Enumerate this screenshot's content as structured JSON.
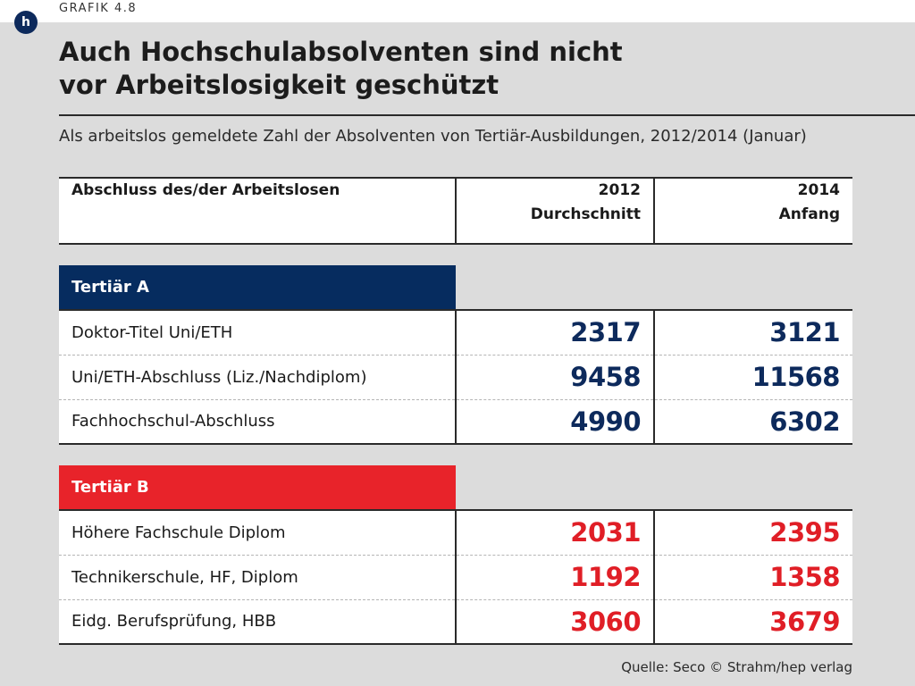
{
  "header": {
    "grafik_label": "GRAFIK 4.8",
    "badge_glyph": "h",
    "title_line1": "Auch Hochschulabsolventen sind nicht",
    "title_line2": "vor Arbeitslosigkeit geschützt",
    "subtitle": "Als arbeitslos gemeldete Zahl der Absolventen von Tertiär-Ausbildungen, 2012/2014 (Januar)"
  },
  "colors": {
    "tertiaer_a": "#062c5f",
    "tertiaer_b": "#e8232a",
    "background": "#dcdcdc"
  },
  "chart_data": {
    "type": "table",
    "title": "Auch Hochschulabsolventen sind nicht vor Arbeitslosigkeit geschützt",
    "subtitle": "Als arbeitslos gemeldete Zahl der Absolventen von Tertiär-Ausbildungen, 2012/2014 (Januar)",
    "columns": [
      {
        "line1": "Abschluss des/der Arbeitslosen",
        "line2": ""
      },
      {
        "line1": "2012",
        "line2": "Durchschnitt"
      },
      {
        "line1": "2014",
        "line2": "Anfang"
      }
    ],
    "groups": [
      {
        "name": "Tertiär A",
        "rows": [
          {
            "label": "Doktor-Titel Uni/ETH",
            "v2012": "2317",
            "v2014": "3121"
          },
          {
            "label": "Uni/ETH-Abschluss (Liz./Nachdiplom)",
            "v2012": "9458",
            "v2014": "11568"
          },
          {
            "label": "Fachhochschul-Abschluss",
            "v2012": "4990",
            "v2014": "6302"
          }
        ]
      },
      {
        "name": "Tertiär B",
        "rows": [
          {
            "label": "Höhere Fachschule Diplom",
            "v2012": "2031",
            "v2014": "2395"
          },
          {
            "label": "Technikerschule, HF, Diplom",
            "v2012": "1192",
            "v2014": "1358"
          },
          {
            "label": "Eidg. Berufsprüfung, HBB",
            "v2012": "3060",
            "v2014": "3679"
          }
        ]
      }
    ],
    "source": "Quelle: Seco",
    "credit": "© Strahm/hep verlag"
  }
}
